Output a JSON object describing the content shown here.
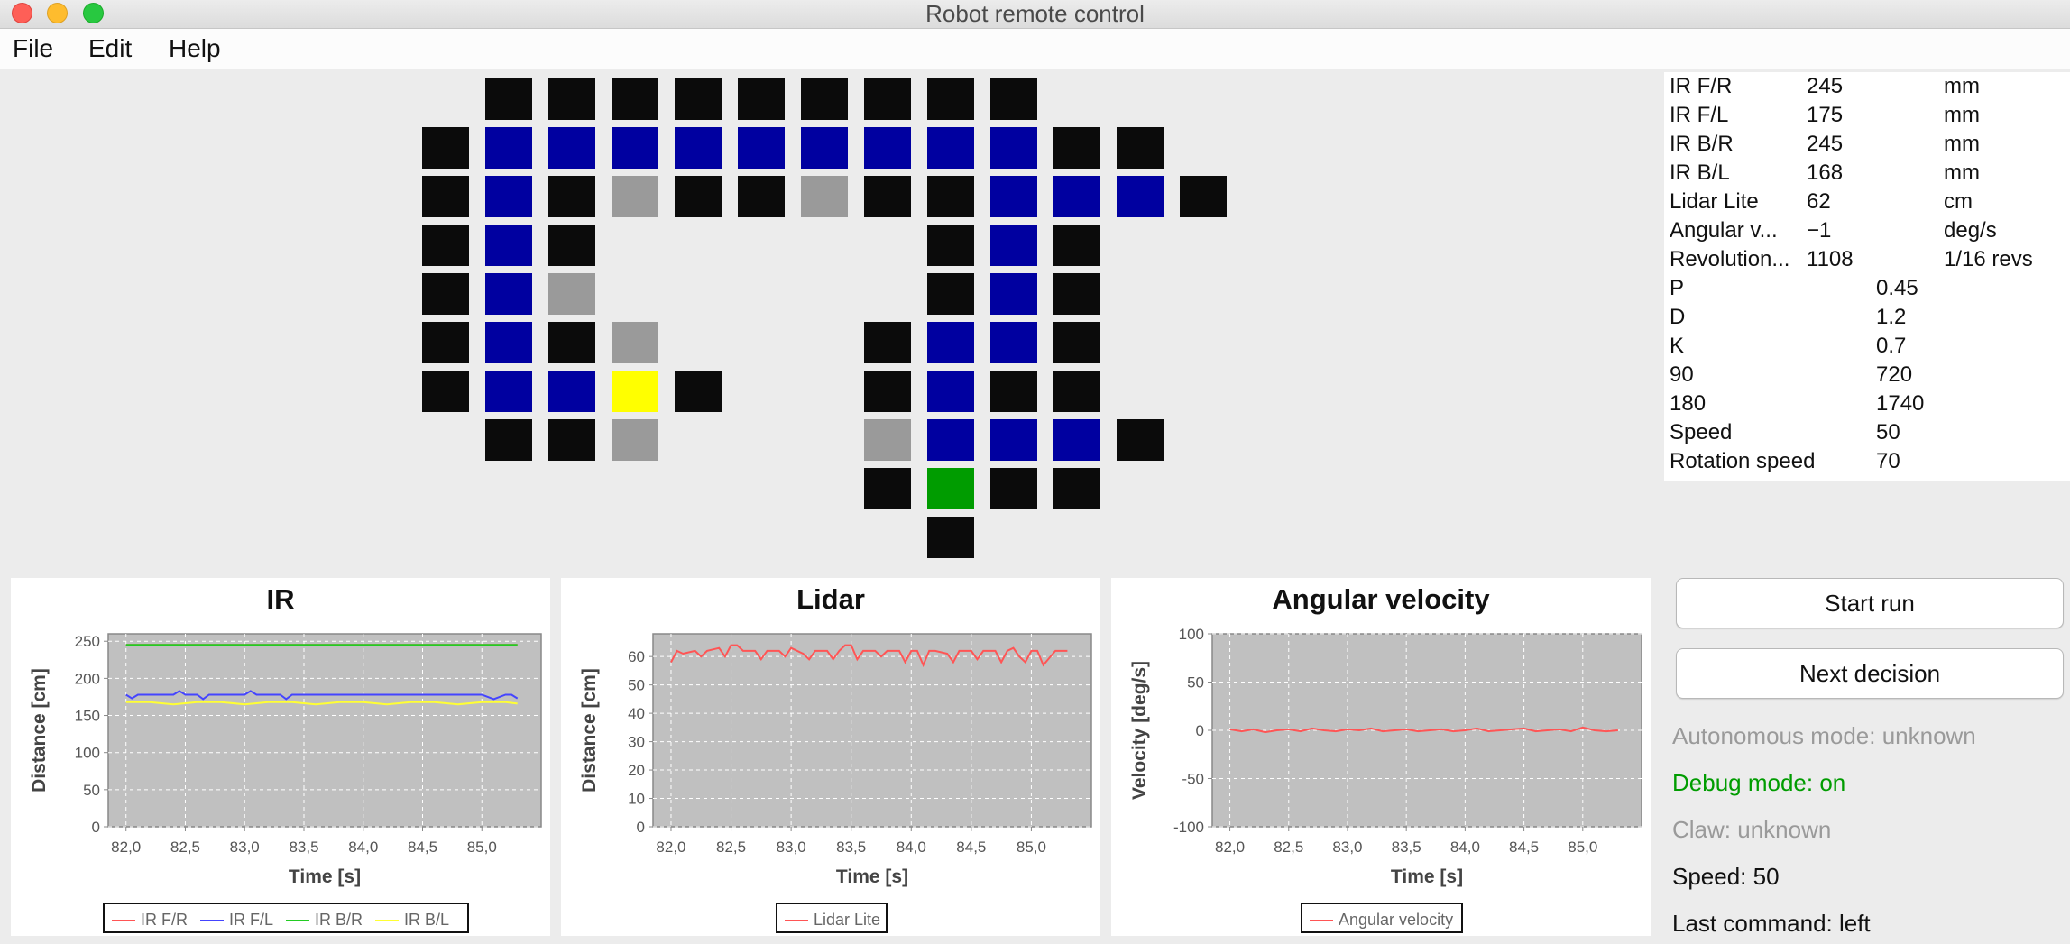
{
  "window": {
    "title": "Robot remote control"
  },
  "menu": {
    "items": [
      "File",
      "Edit",
      "Help"
    ]
  },
  "colors": {
    "wall": "#0b0b0b",
    "visited": "#0000a0",
    "unknown": "#9a9a9a",
    "robot": "#ffff00",
    "start": "#009c00",
    "plot_bg": "#c0c0c0",
    "ir_fr": "#ff5555",
    "ir_fl": "#4444ff",
    "ir_br": "#22cc22",
    "ir_bl": "#ffff33",
    "lidar": "#ff5555",
    "angular": "#ff5555",
    "debug_on": "#009c00",
    "muted": "#9a9a9a"
  },
  "map": {
    "legend_codes": "B=wall, U=visited, G=unknown, Y=robot, S=start",
    "rows": [
      ".BBBBBBBBB....",
      "BUUUUUUUUUBB..",
      "BUBGBBGBBUUUB.",
      "BUB.....BUB...",
      "BUG.....BUB...",
      "BUBG...BUUB...",
      "BUUYB..BUBB...",
      ".BBG...GUUUB..",
      ".......BSBB...",
      "........B....."
    ]
  },
  "sensors": [
    {
      "name": "IR F/R",
      "value": "245",
      "unit": "mm"
    },
    {
      "name": "IR F/L",
      "value": "175",
      "unit": "mm"
    },
    {
      "name": "IR B/R",
      "value": "245",
      "unit": "mm"
    },
    {
      "name": "IR B/L",
      "value": "168",
      "unit": "mm"
    },
    {
      "name": "Lidar Lite",
      "value": "62",
      "unit": "cm"
    },
    {
      "name": "Angular v...",
      "value": "−1",
      "unit": "deg/s"
    },
    {
      "name": "Revolution...",
      "value": "1108",
      "unit": "1/16 revs"
    }
  ],
  "parameters": [
    {
      "name": "P",
      "value": "0.45"
    },
    {
      "name": "D",
      "value": "1.2"
    },
    {
      "name": "K",
      "value": "0.7"
    },
    {
      "name": "90",
      "value": "720"
    },
    {
      "name": "180",
      "value": "1740"
    },
    {
      "name": "Speed",
      "value": "50"
    },
    {
      "name": "Rotation speed",
      "value": "70"
    }
  ],
  "controls": {
    "start_run": "Start run",
    "next_decision": "Next decision",
    "autonomous_mode": "Autonomous mode: unknown",
    "debug_mode": "Debug mode: on",
    "claw": "Claw: unknown",
    "speed": "Speed: 50",
    "last_command": "Last command: left"
  },
  "chart_data": [
    {
      "type": "line",
      "title": "IR",
      "xlabel": "Time [s]",
      "ylabel": "Distance [cm]",
      "xlim": [
        81.85,
        85.5
      ],
      "ylim": [
        0,
        260
      ],
      "xticks": [
        "82,0",
        "82,5",
        "83,0",
        "83,5",
        "84,0",
        "84,5",
        "85,0"
      ],
      "yticks": [
        "0",
        "50",
        "100",
        "150",
        "200",
        "250"
      ],
      "ytick_values": [
        0,
        50,
        100,
        150,
        200,
        250
      ],
      "series": [
        {
          "name": "IR F/R",
          "color": "#ff5555",
          "x": [
            82.0,
            85.3
          ],
          "y": [
            245,
            245
          ]
        },
        {
          "name": "IR F/L",
          "color": "#4444ff",
          "x": [
            82.0,
            82.05,
            82.1,
            82.2,
            82.4,
            82.45,
            82.5,
            82.6,
            82.65,
            82.7,
            82.9,
            83.0,
            83.05,
            83.1,
            83.3,
            83.35,
            83.4,
            83.6,
            83.8,
            84.0,
            84.2,
            84.4,
            84.6,
            84.8,
            85.0,
            85.1,
            85.2,
            85.25,
            85.3
          ],
          "y": [
            178,
            173,
            178,
            178,
            178,
            183,
            178,
            178,
            172,
            178,
            178,
            178,
            183,
            178,
            178,
            172,
            178,
            178,
            178,
            178,
            178,
            178,
            178,
            178,
            178,
            172,
            178,
            178,
            173
          ]
        },
        {
          "name": "IR B/R",
          "color": "#22cc22",
          "x": [
            82.0,
            85.3
          ],
          "y": [
            245,
            245
          ]
        },
        {
          "name": "IR B/L",
          "color": "#ffff33",
          "x": [
            82.0,
            82.2,
            82.4,
            82.6,
            82.8,
            83.0,
            83.2,
            83.4,
            83.6,
            83.8,
            84.0,
            84.2,
            84.4,
            84.6,
            84.8,
            85.0,
            85.2,
            85.3
          ],
          "y": [
            168,
            168,
            165,
            168,
            168,
            165,
            168,
            168,
            165,
            168,
            168,
            165,
            168,
            168,
            165,
            168,
            168,
            166
          ]
        }
      ],
      "legend": "bottom"
    },
    {
      "type": "line",
      "title": "Lidar",
      "xlabel": "Time [s]",
      "ylabel": "Distance [cm]",
      "xlim": [
        81.85,
        85.5
      ],
      "ylim": [
        0,
        68
      ],
      "xticks": [
        "82,0",
        "82,5",
        "83,0",
        "83,5",
        "84,0",
        "84,5",
        "85,0"
      ],
      "yticks": [
        "0",
        "10",
        "20",
        "30",
        "40",
        "50",
        "60"
      ],
      "ytick_values": [
        0,
        10,
        20,
        30,
        40,
        50,
        60
      ],
      "series": [
        {
          "name": "Lidar Lite",
          "color": "#ff5555",
          "x": [
            82.0,
            82.05,
            82.1,
            82.2,
            82.25,
            82.3,
            82.4,
            82.45,
            82.5,
            82.55,
            82.6,
            82.7,
            82.75,
            82.8,
            82.9,
            82.95,
            83.0,
            83.1,
            83.15,
            83.2,
            83.3,
            83.35,
            83.4,
            83.45,
            83.5,
            83.55,
            83.6,
            83.7,
            83.75,
            83.8,
            83.9,
            83.95,
            84.0,
            84.05,
            84.1,
            84.15,
            84.2,
            84.3,
            84.35,
            84.4,
            84.5,
            84.55,
            84.6,
            84.7,
            84.75,
            84.8,
            84.85,
            84.9,
            84.95,
            85.0,
            85.05,
            85.1,
            85.2,
            85.3
          ],
          "y": [
            58,
            62,
            61,
            62,
            60,
            62,
            63,
            60,
            64,
            64,
            62,
            62,
            59,
            62,
            62,
            60,
            63,
            61,
            59,
            62,
            62,
            59,
            62,
            64,
            64,
            59,
            62,
            62,
            60,
            62,
            62,
            58,
            62,
            62,
            57,
            62,
            62,
            61,
            58,
            62,
            62,
            59,
            62,
            62,
            58,
            62,
            63,
            60,
            58,
            62,
            62,
            57,
            62,
            62
          ]
        }
      ],
      "legend": "bottom"
    },
    {
      "type": "line",
      "title": "Angular velocity",
      "xlabel": "Time [s]",
      "ylabel": "Velocity [deg/s]",
      "xlim": [
        81.85,
        85.5
      ],
      "ylim": [
        -100,
        100
      ],
      "xticks": [
        "82,0",
        "82,5",
        "83,0",
        "83,5",
        "84,0",
        "84,5",
        "85,0"
      ],
      "yticks": [
        "-100",
        "-50",
        "0",
        "50",
        "100"
      ],
      "ytick_values": [
        -100,
        -50,
        0,
        50,
        100
      ],
      "series": [
        {
          "name": "Angular velocity",
          "color": "#ff5555",
          "x": [
            82.0,
            82.1,
            82.2,
            82.3,
            82.4,
            82.5,
            82.6,
            82.7,
            82.8,
            82.9,
            83.0,
            83.1,
            83.2,
            83.3,
            83.4,
            83.5,
            83.6,
            83.7,
            83.8,
            83.9,
            84.0,
            84.1,
            84.2,
            84.3,
            84.4,
            84.5,
            84.6,
            84.7,
            84.8,
            84.9,
            85.0,
            85.1,
            85.2,
            85.3
          ],
          "y": [
            1,
            -1,
            1,
            -2,
            0,
            1,
            -1,
            2,
            0,
            -1,
            1,
            0,
            2,
            -1,
            0,
            1,
            -1,
            0,
            1,
            -1,
            0,
            2,
            -1,
            0,
            1,
            2,
            -1,
            0,
            1,
            -1,
            3,
            0,
            -1,
            0
          ]
        }
      ],
      "legend": "bottom"
    }
  ]
}
